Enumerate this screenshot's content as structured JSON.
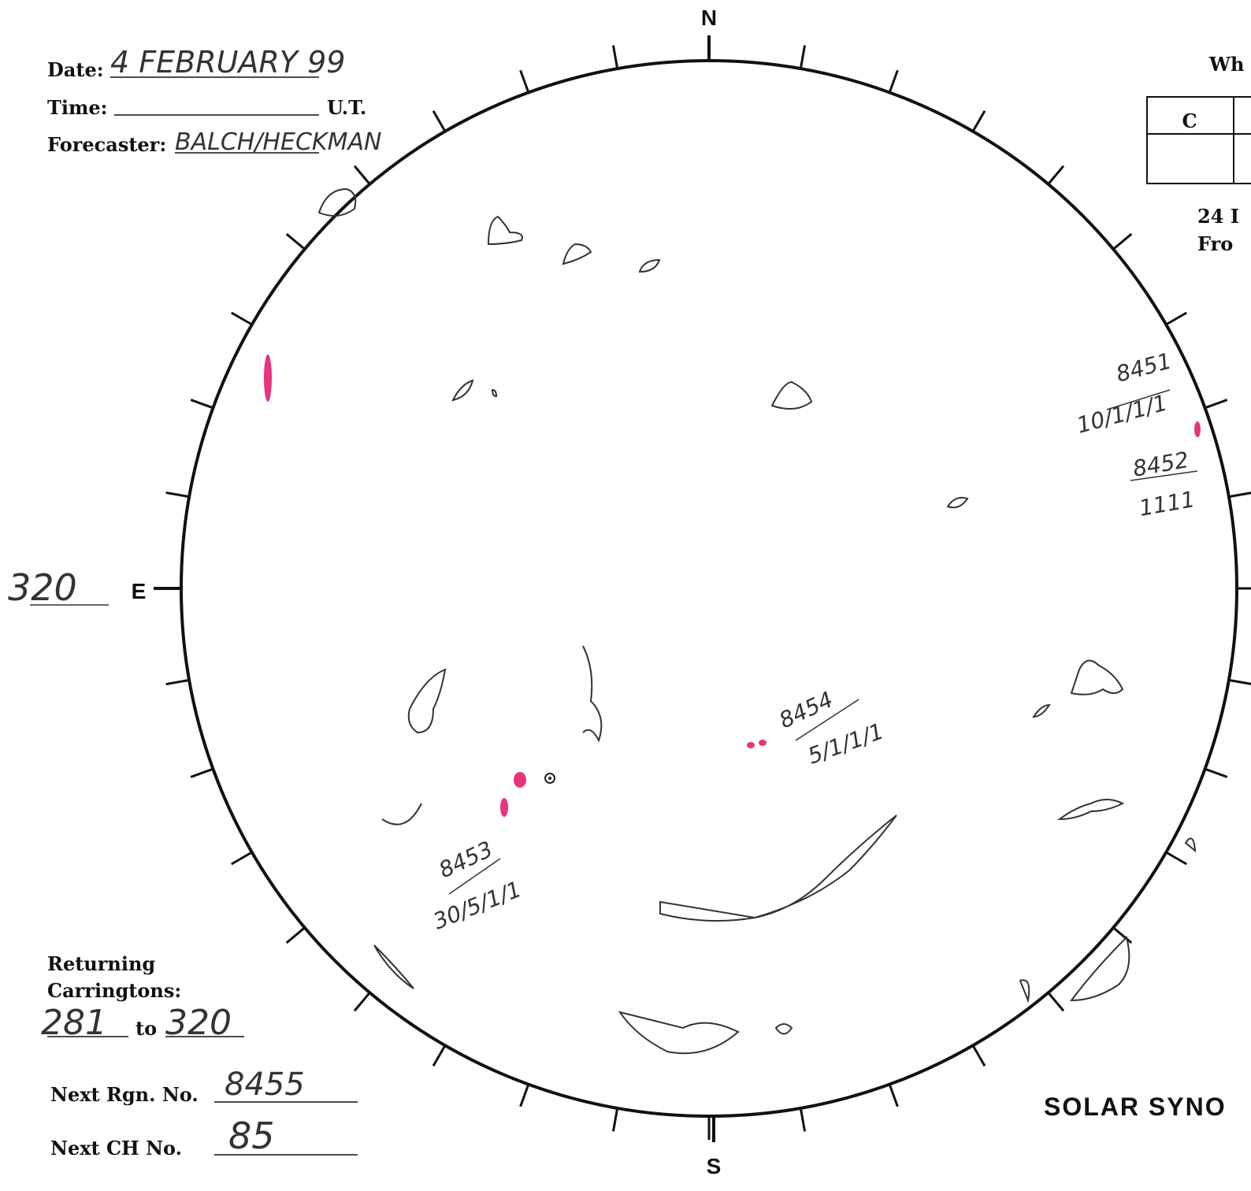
{
  "header": {
    "date_label": "Date:",
    "date": "4 FEBRUARY 99",
    "time_label": "Time:",
    "time_unit": "U.T.",
    "forecaster_label": "Forecaster:",
    "forecaster": "BALCH/HECKMAN"
  },
  "compass": {
    "north": "N",
    "east": "E",
    "south": "S",
    "east_longitude": "320"
  },
  "top_right": {
    "heading": "Wh",
    "table_header": "C",
    "note_line1": "24 I",
    "note_line2": "Fro"
  },
  "regions": [
    {
      "number": "8451",
      "data": "10/1/1/1"
    },
    {
      "number": "8452",
      "data": "1111"
    },
    {
      "number": "8454",
      "data": "5/1/1/1"
    },
    {
      "number": "8453",
      "data": "30/5/1/1"
    }
  ],
  "footer": {
    "returning_label": "Returning Carringtons:",
    "returning_from": "281",
    "to_label": "to",
    "returning_to": "320",
    "next_region_label": "Next Rgn. No.",
    "next_region": "8455",
    "next_ch_label": "Next CH No.",
    "next_ch": "85"
  },
  "title": "SOLAR SYNO"
}
